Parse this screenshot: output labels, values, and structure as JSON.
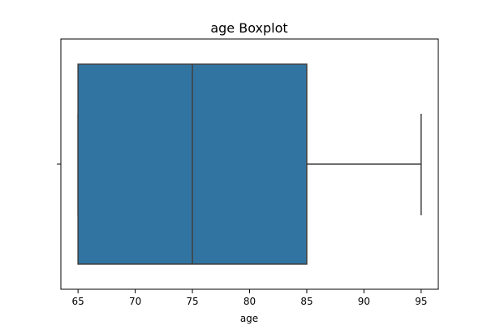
{
  "chart_data": {
    "type": "box",
    "title": "age Boxplot",
    "xlabel": "age",
    "ylabel": "",
    "orientation": "horizontal",
    "xlim": [
      63.5,
      96.5
    ],
    "xticks": [
      65,
      70,
      75,
      80,
      85,
      90,
      95
    ],
    "box": {
      "min": 65,
      "q1": 65,
      "median": 75,
      "q3": 85,
      "max": 95
    },
    "colors": {
      "box": "#3274a1",
      "lines": "#3f3f3f"
    },
    "grid": false
  }
}
